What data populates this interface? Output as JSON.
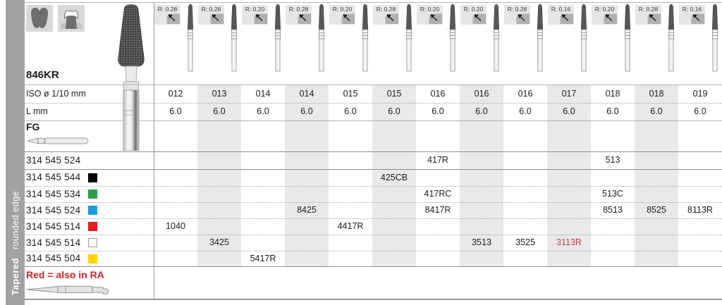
{
  "sidebar": {
    "title": "Tapered",
    "subtitle": "rounded edge"
  },
  "header": {
    "series": "846KR",
    "iso_label": "ISO ø 1/10 mm",
    "length_label": "L mm",
    "shank_label": "FG",
    "icon_names": [
      "tooth-crown-prep-icon",
      "tooth-crown-icon"
    ]
  },
  "columns": [
    {
      "radius": "R: 0.28",
      "iso": "012",
      "length": "6.0"
    },
    {
      "radius": "R: 0.28",
      "iso": "013",
      "length": "6.0"
    },
    {
      "radius": "R: 0.20",
      "iso": "014",
      "length": "6.0"
    },
    {
      "radius": "R: 0.28",
      "iso": "014",
      "length": "6.0"
    },
    {
      "radius": "R: 0.20",
      "iso": "015",
      "length": "6.0"
    },
    {
      "radius": "R: 0.28",
      "iso": "015",
      "length": "6.0"
    },
    {
      "radius": "R: 0.20",
      "iso": "016",
      "length": "6.0"
    },
    {
      "radius": "R: 0.20",
      "iso": "016",
      "length": "6.0"
    },
    {
      "radius": "R: 0.28",
      "iso": "016",
      "length": "6.0"
    },
    {
      "radius": "R: 0.16",
      "iso": "017",
      "length": "6.0"
    },
    {
      "radius": "R: 0.20",
      "iso": "018",
      "length": "6.0"
    },
    {
      "radius": "R: 0.28",
      "iso": "018",
      "length": "6.0"
    },
    {
      "radius": "R: 0.16",
      "iso": "019",
      "length": "6.0"
    }
  ],
  "products": [
    {
      "code": "314 545 524",
      "swatch": null,
      "cells": [
        {
          "col": 7,
          "value": "417R"
        },
        {
          "col": 11,
          "value": "513"
        }
      ]
    },
    {
      "code": "314 545 544",
      "swatch": "#000000",
      "cells": [
        {
          "col": 6,
          "value": "425CB"
        }
      ]
    },
    {
      "code": "314 545 534",
      "swatch": "#2b9f47",
      "cells": [
        {
          "col": 7,
          "value": "417RC"
        },
        {
          "col": 11,
          "value": "513C"
        }
      ]
    },
    {
      "code": "314 545 524",
      "swatch": "#1b9cd8",
      "cells": [
        {
          "col": 4,
          "value": "8425"
        },
        {
          "col": 7,
          "value": "8417R"
        },
        {
          "col": 11,
          "value": "8513"
        },
        {
          "col": 12,
          "value": "8525"
        },
        {
          "col": 13,
          "value": "8113R"
        }
      ]
    },
    {
      "code": "314 545 514",
      "swatch": "#e41e25",
      "cells": [
        {
          "col": 1,
          "value": "1040"
        },
        {
          "col": 5,
          "value": "4417R"
        }
      ]
    },
    {
      "code": "314 545 514",
      "swatch": "#ffffff",
      "cells": [
        {
          "col": 2,
          "value": "3425"
        },
        {
          "col": 8,
          "value": "3513"
        },
        {
          "col": 9,
          "value": "3525"
        },
        {
          "col": 10,
          "value": "3113R",
          "red": true
        }
      ]
    },
    {
      "code": "314 545 504",
      "swatch": "#fdd205",
      "cells": [
        {
          "col": 3,
          "value": "5417R"
        }
      ]
    }
  ],
  "footer": {
    "note": "Red = also in RA"
  },
  "colors": {
    "stripe": "#e9e9e9",
    "sidebar_bg": "#a2a2a2",
    "note_red": "#cc2127",
    "cell_red": "#c2464c",
    "swatch_border": "#9a9a9a"
  }
}
